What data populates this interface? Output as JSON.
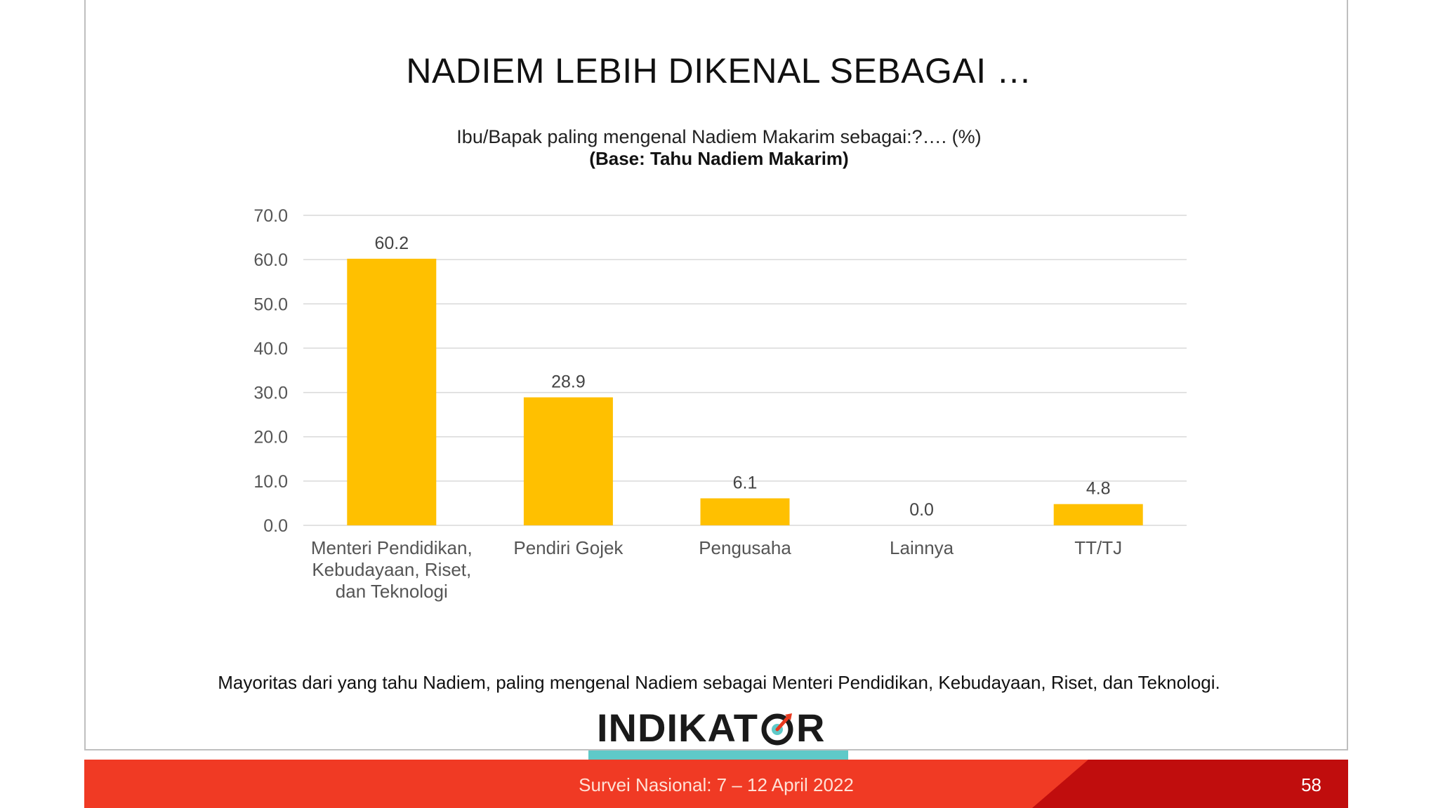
{
  "slide": {
    "title": "NADIEM LEBIH DIKENAL SEBAGAI …",
    "footnote": "Mayoritas dari yang tahu Nadiem, paling mengenal Nadiem sebagai Menteri Pendidikan, Kebudayaan, Riset, dan Teknologi.",
    "logo_text_left": "INDIKAT",
    "logo_text_right": "R",
    "logo_icon": "target-arrow-icon",
    "footer_text": "Survei Nasional: 7 – 12 April 2022",
    "page_number": "58",
    "colors": {
      "bar": "#FFC000",
      "footer_red": "#F03A24",
      "footer_dark_red": "#C00D0D",
      "teal": "#5FC9C8"
    }
  },
  "chart_data": {
    "type": "bar",
    "title": "Ibu/Bapak paling mengenal Nadiem Makarim sebagai:?…. (%)",
    "subtitle": "(Base: Tahu Nadiem Makarim)",
    "categories": [
      [
        "Menteri Pendidikan,",
        "Kebudayaan, Riset,",
        "dan Teknologi"
      ],
      [
        "Pendiri Gojek"
      ],
      [
        "Pengusaha"
      ],
      [
        "Lainnya"
      ],
      [
        "TT/TJ"
      ]
    ],
    "values": [
      60.2,
      28.9,
      6.1,
      0.0,
      4.8
    ],
    "value_labels": [
      "60.2",
      "28.9",
      "6.1",
      "0.0",
      "4.8"
    ],
    "yticks": [
      "0.0",
      "10.0",
      "20.0",
      "30.0",
      "40.0",
      "50.0",
      "60.0",
      "70.0"
    ],
    "ylim": [
      0,
      70
    ],
    "grid": true,
    "legend": false
  }
}
